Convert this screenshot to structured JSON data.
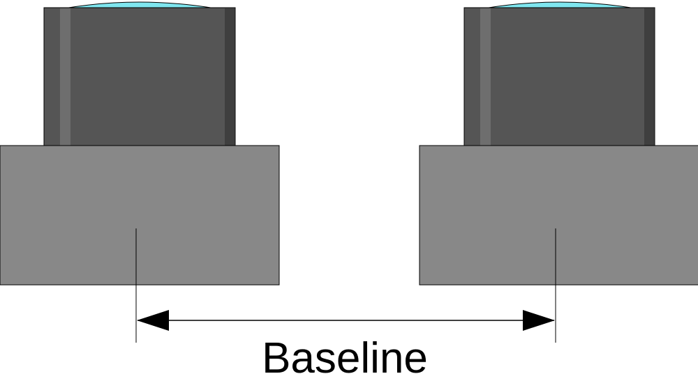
{
  "diagram": {
    "caption": "Baseline",
    "colors": {
      "background": "#ffffff",
      "body": "#888888",
      "lens_barrel": "#555555",
      "barrel_highlight": "#6e6e6e",
      "barrel_shadow": "#3f3f3f",
      "lens_glass": "#7fe6ef",
      "outline": "#000000"
    },
    "cameras": [
      {
        "label": "",
        "icon": "camera-left"
      },
      {
        "label": "",
        "icon": "camera-right"
      }
    ]
  }
}
